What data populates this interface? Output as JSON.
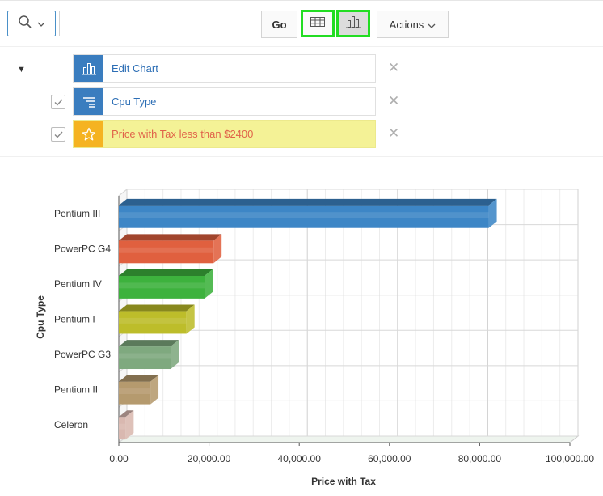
{
  "toolbar": {
    "search_placeholder": "",
    "go_label": "Go",
    "actions_label": "Actions"
  },
  "report_settings": {
    "rows": [
      {
        "label": "Edit Chart",
        "icon": "bar-chart-icon",
        "checkbox": false
      },
      {
        "label": "Cpu Type",
        "icon": "group-by-icon",
        "checkbox": true
      },
      {
        "label": "Price with Tax less than $2400",
        "icon": "star-icon",
        "checkbox": true,
        "highlight": true
      }
    ]
  },
  "chart_data": {
    "type": "bar",
    "orientation": "horizontal",
    "style": "3d",
    "categories": [
      "Pentium III",
      "PowerPC G4",
      "Pentium IV",
      "Pentium I",
      "PowerPC G3",
      "Pentium II",
      "Celeron"
    ],
    "values": [
      82000,
      21000,
      19000,
      15000,
      11500,
      7000,
      1500
    ],
    "colors": [
      "#3d86c6",
      "#e0603f",
      "#3db23d",
      "#bdbd2a",
      "#7fa97f",
      "#b59a6e",
      "#d9b8b0"
    ],
    "xlabel": "Price with Tax",
    "ylabel": "Cpu Type",
    "xlim": [
      0,
      100000
    ],
    "xticks": [
      "0.00",
      "20,000.00",
      "40,000.00",
      "60,000.00",
      "80,000.00",
      "100,000.00"
    ],
    "grid": true
  }
}
